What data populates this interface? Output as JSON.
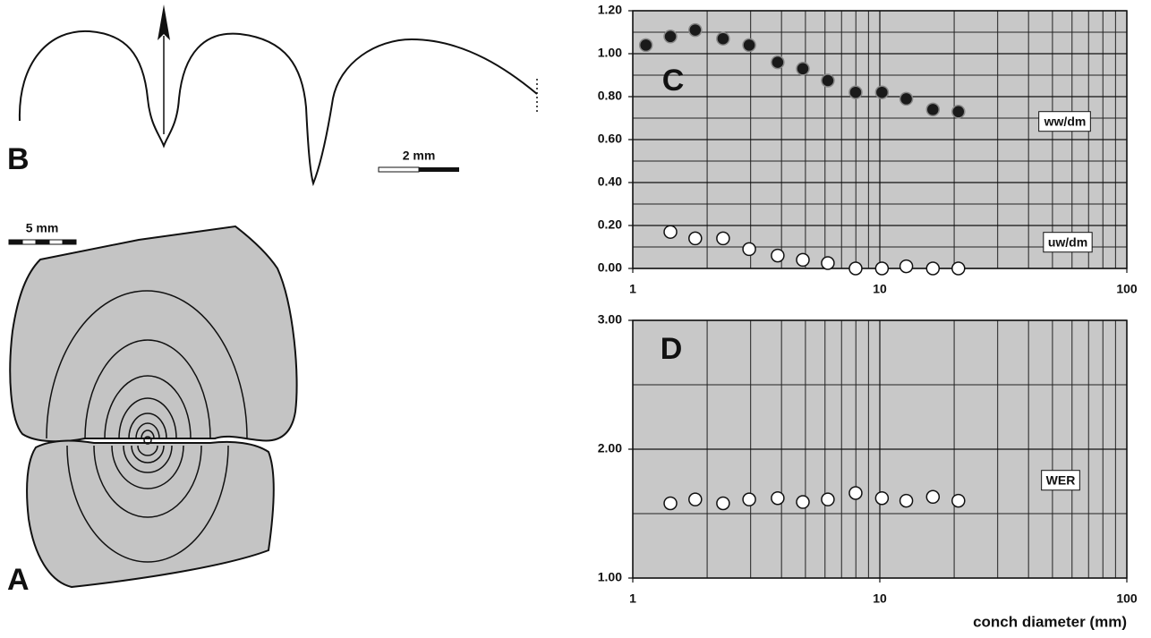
{
  "figure": {
    "panel_a_label": "A",
    "panel_b_label": "B",
    "scale_a": "5 mm",
    "scale_b": "2 mm"
  },
  "chart_data": [
    {
      "type": "scatter",
      "label": "C",
      "xscale": "log",
      "grid": true,
      "xlim": [
        1,
        100
      ],
      "xticks": [
        1,
        10,
        100
      ],
      "xgrid": [
        2,
        3,
        4,
        5,
        6,
        7,
        8,
        9,
        20,
        30,
        40,
        50,
        60,
        70,
        80,
        90
      ],
      "ylim": [
        0,
        1.2
      ],
      "yticks": [
        {
          "value": 0,
          "label": "0.00"
        },
        {
          "value": 0.2,
          "label": "0.20"
        },
        {
          "value": 0.4,
          "label": "0.40"
        },
        {
          "value": 0.6,
          "label": "0.60"
        },
        {
          "value": 0.8,
          "label": "0.80"
        },
        {
          "value": 1.0,
          "label": "1.00"
        },
        {
          "value": 1.2,
          "label": "1.20"
        }
      ],
      "ygrid": [
        0.1,
        0.3,
        0.5,
        0.7,
        0.9,
        1.1
      ],
      "series": [
        {
          "name": "ww/dm",
          "color": "#1a1a1a",
          "x": [
            1.13,
            1.42,
            1.79,
            2.32,
            2.96,
            3.86,
            4.88,
            6.16,
            7.98,
            10.2,
            12.8,
            16.4,
            20.8
          ],
          "values": [
            1.04,
            1.08,
            1.11,
            1.07,
            1.04,
            0.96,
            0.93,
            0.875,
            0.82,
            0.82,
            0.79,
            0.74,
            0.73
          ]
        },
        {
          "name": "uw/dm",
          "color": "#ffffff",
          "x": [
            1.42,
            1.79,
            2.32,
            2.96,
            3.86,
            4.88,
            6.16,
            7.98,
            10.2,
            12.8,
            16.4,
            20.8
          ],
          "values": [
            0.17,
            0.14,
            0.14,
            0.09,
            0.06,
            0.04,
            0.025,
            0.0,
            0.0,
            0.01,
            0.0,
            0.0
          ]
        }
      ]
    },
    {
      "type": "scatter",
      "label": "D",
      "xscale": "log",
      "grid": true,
      "x_label": "conch diameter (mm)",
      "xlim": [
        1,
        100
      ],
      "xticks": [
        1,
        10,
        100
      ],
      "xgrid": [
        2,
        3,
        4,
        5,
        6,
        7,
        8,
        9,
        20,
        30,
        40,
        50,
        60,
        70,
        80,
        90
      ],
      "ylim": [
        1,
        3
      ],
      "yticks": [
        {
          "value": 1,
          "label": "1.00"
        },
        {
          "value": 2,
          "label": "2.00"
        },
        {
          "value": 3,
          "label": "3.00"
        }
      ],
      "ygrid": [
        1.5,
        2.5
      ],
      "series": [
        {
          "name": "WER",
          "color": "#ffffff",
          "x": [
            1.42,
            1.79,
            2.32,
            2.96,
            3.86,
            4.88,
            6.16,
            7.98,
            10.2,
            12.8,
            16.4,
            20.8
          ],
          "values": [
            1.58,
            1.61,
            1.58,
            1.61,
            1.62,
            1.59,
            1.61,
            1.66,
            1.62,
            1.6,
            1.63,
            1.6
          ]
        }
      ]
    }
  ]
}
